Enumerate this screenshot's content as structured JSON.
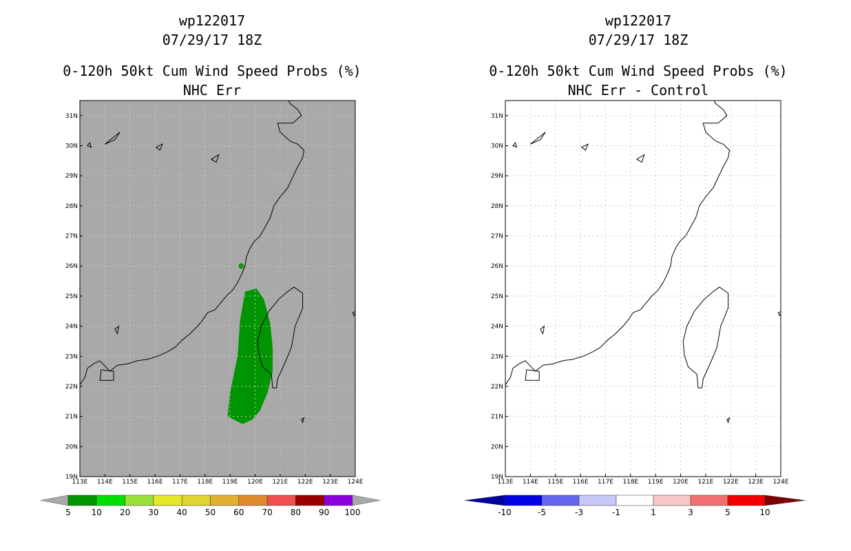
{
  "chart_data": [
    {
      "type": "heatmap",
      "storm_id": "wp122017",
      "datetime": "07/29/17 18Z",
      "title": "0-120h 50kt Cum Wind Speed Probs (%)",
      "subtitle": "NHC Err",
      "xlim": [
        113,
        124
      ],
      "ylim": [
        19,
        31.5
      ],
      "x_ticks": [
        "113E",
        "114E",
        "115E",
        "116E",
        "117E",
        "118E",
        "119E",
        "120E",
        "121E",
        "122E",
        "123E",
        "124E"
      ],
      "y_ticks": [
        "19N",
        "20N",
        "21N",
        "22N",
        "23N",
        "24N",
        "25N",
        "26N",
        "27N",
        "28N",
        "29N",
        "30N",
        "31N"
      ],
      "background": "#a9a9a9",
      "grid": true,
      "probability_region": {
        "range": "5-10",
        "color": "#009500",
        "polygon_lonlat": [
          [
            119.6,
            25.15
          ],
          [
            120.05,
            25.25
          ],
          [
            120.35,
            24.9
          ],
          [
            120.6,
            24.1
          ],
          [
            120.7,
            23.3
          ],
          [
            120.7,
            22.5
          ],
          [
            120.5,
            21.8
          ],
          [
            120.2,
            21.2
          ],
          [
            119.9,
            20.9
          ],
          [
            119.5,
            20.75
          ],
          [
            118.9,
            21.0
          ],
          [
            119.0,
            21.8
          ],
          [
            119.3,
            23.0
          ],
          [
            119.4,
            24.2
          ]
        ],
        "small_patch_lonlat": [
          119.45,
          26.0
        ]
      },
      "colorbar": {
        "labels": [
          "5",
          "10",
          "20",
          "30",
          "40",
          "50",
          "60",
          "70",
          "80",
          "90",
          "100"
        ],
        "colors": [
          "#009500",
          "#00e000",
          "#9be03a",
          "#e8e82a",
          "#e0d430",
          "#e0b030",
          "#e08a2e",
          "#f05050",
          "#9b0000",
          "#8c00dc"
        ],
        "end_color": "#a9a9a9"
      }
    },
    {
      "type": "heatmap",
      "storm_id": "wp122017",
      "datetime": "07/29/17 18Z",
      "title": "0-120h 50kt Cum Wind Speed Probs (%)",
      "subtitle": "NHC Err - Control",
      "xlim": [
        113,
        124
      ],
      "ylim": [
        19,
        31.5
      ],
      "x_ticks": [
        "113E",
        "114E",
        "115E",
        "116E",
        "117E",
        "118E",
        "119E",
        "120E",
        "121E",
        "122E",
        "123E",
        "124E"
      ],
      "y_ticks": [
        "19N",
        "20N",
        "21N",
        "22N",
        "23N",
        "24N",
        "25N",
        "26N",
        "27N",
        "28N",
        "29N",
        "30N",
        "31N"
      ],
      "background": "#ffffff",
      "grid": true,
      "colorbar": {
        "labels": [
          "-10",
          "-5",
          "-3",
          "-1",
          "1",
          "3",
          "5",
          "10"
        ],
        "colors": [
          "#0000e0",
          "#6464f0",
          "#c8c8f8",
          "#ffffff",
          "#f8c8c8",
          "#f07070",
          "#f00000"
        ],
        "left_end_color": "#0000a0",
        "right_end_color": "#800000"
      }
    }
  ]
}
